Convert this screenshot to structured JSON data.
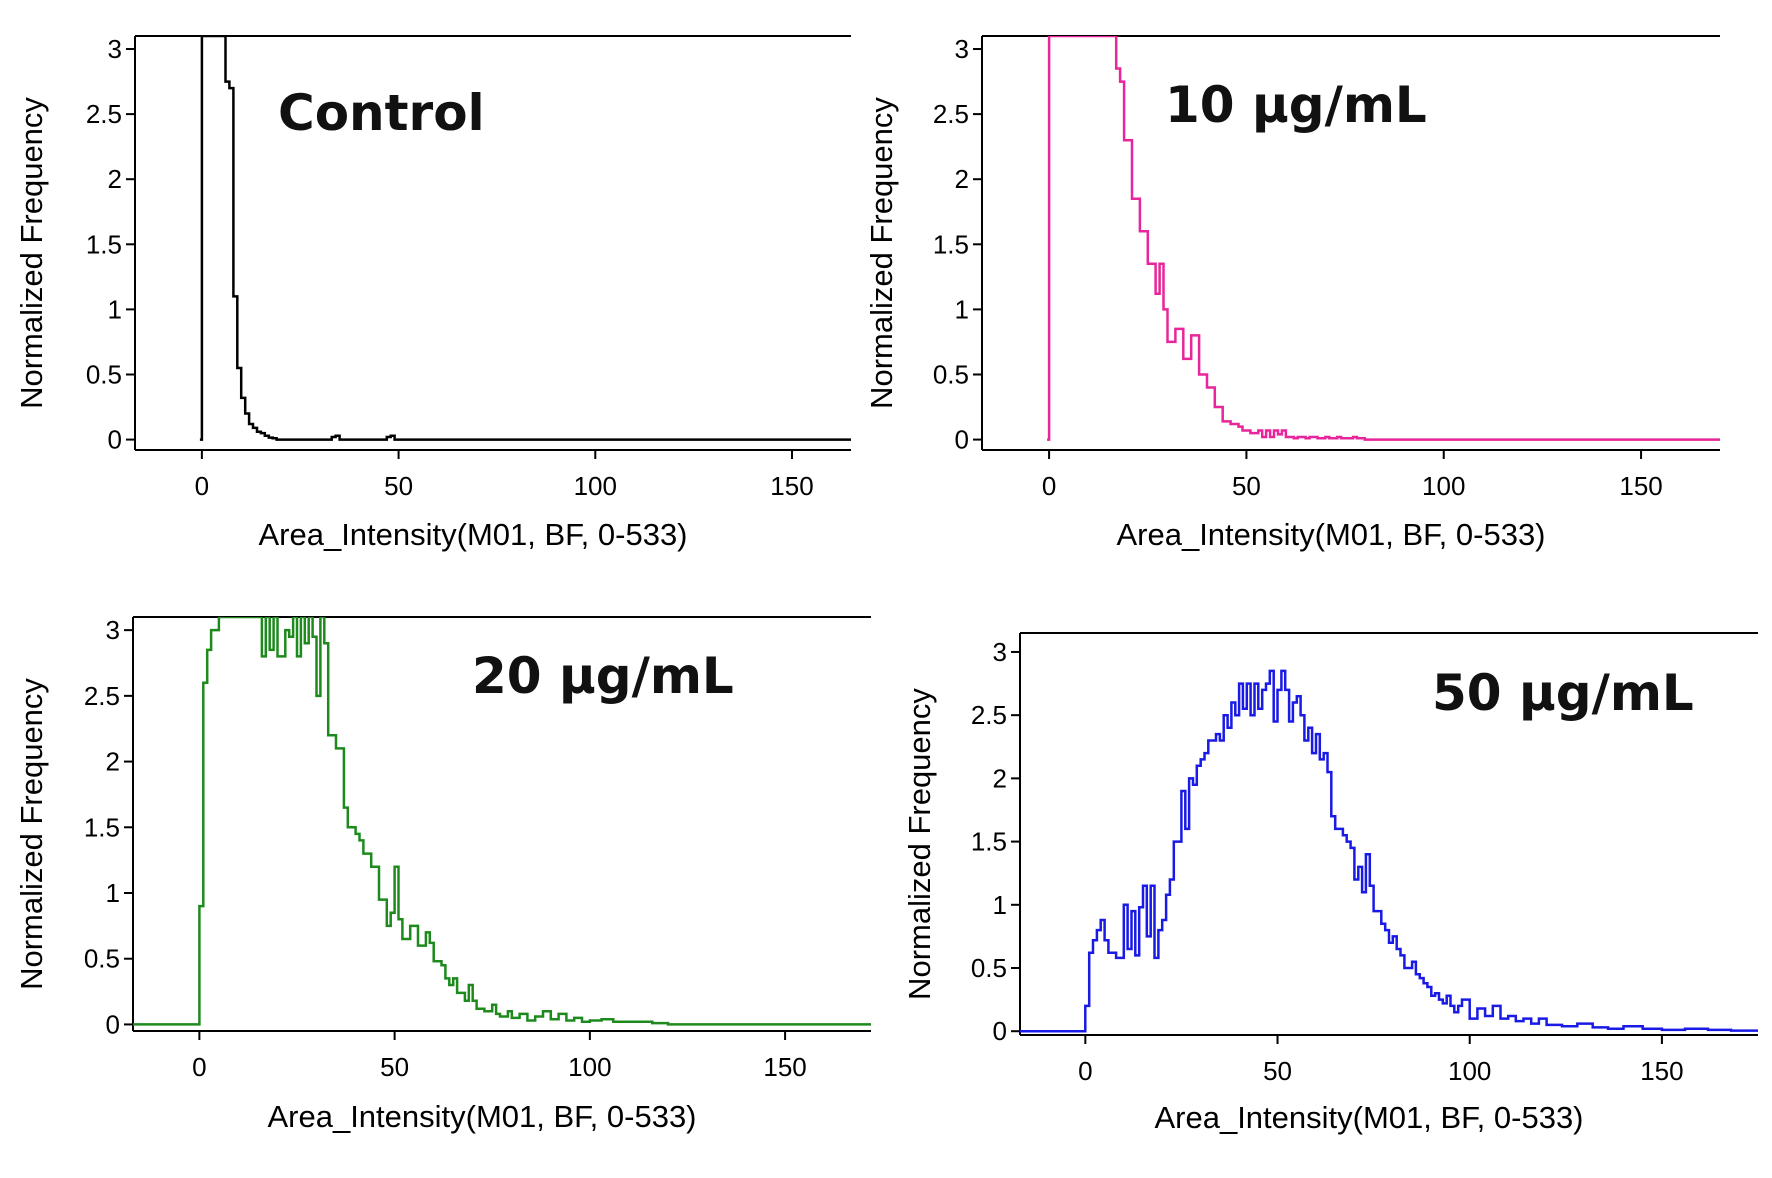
{
  "colors": {
    "control": "#000000",
    "dose_10": "#e8259a",
    "dose_20": "#1e8a1e",
    "dose_50": "#1a1ae6",
    "axis": "#000000"
  },
  "chart_data": [
    {
      "type": "histogram",
      "title": "Control",
      "xlabel": "Area_Intensity(M01, BF, 0-533)",
      "ylabel": "Normalized Frequency",
      "xlim": [
        -17,
        165
      ],
      "ylim": [
        -0.08,
        3.1
      ],
      "xticks": [
        0,
        50,
        100,
        150
      ],
      "xtick_labels": [
        "0",
        "50",
        "100",
        "150"
      ],
      "yticks": [
        0,
        0.5,
        1,
        1.5,
        2,
        2.5,
        3
      ],
      "ytick_labels": [
        "0",
        "0.5",
        "1",
        "1.5",
        "2",
        "2.5",
        "3"
      ],
      "color_key": "control",
      "x": [
        -0.5,
        0,
        5,
        6,
        7,
        8,
        9,
        10,
        11,
        12,
        13,
        14,
        15,
        16,
        17,
        18,
        19,
        20,
        33,
        34,
        35,
        47,
        48,
        49,
        50,
        165
      ],
      "y": [
        0,
        3.1,
        3.1,
        2.75,
        2.7,
        1.1,
        0.55,
        0.32,
        0.2,
        0.12,
        0.09,
        0.06,
        0.05,
        0.03,
        0.015,
        0.01,
        0,
        0,
        0.02,
        0.03,
        0,
        0.02,
        0.03,
        0,
        0,
        0
      ]
    },
    {
      "type": "histogram",
      "title": "10 µg/mL",
      "xlabel": "Area_Intensity(M01, BF, 0-533)",
      "ylabel": "Normalized Frequency",
      "xlim": [
        -17,
        170
      ],
      "ylim": [
        -0.08,
        3.1
      ],
      "xticks": [
        0,
        50,
        100,
        150
      ],
      "xtick_labels": [
        "0",
        "50",
        "100",
        "150"
      ],
      "yticks": [
        0,
        0.5,
        1,
        1.5,
        2,
        2.5,
        3
      ],
      "ytick_labels": [
        "0",
        "0.5",
        "1",
        "1.5",
        "2",
        "2.5",
        "3"
      ],
      "color_key": "dose_10",
      "x": [
        -0.5,
        0,
        16,
        17,
        18,
        19,
        20,
        21,
        22,
        23,
        24,
        25,
        26,
        27,
        28,
        29,
        30,
        31,
        32,
        33,
        34,
        35,
        36,
        37,
        38,
        39,
        40,
        41,
        42,
        43,
        44,
        45,
        46,
        47,
        48,
        49,
        50,
        51,
        52,
        53,
        54,
        55,
        56,
        57,
        58,
        59,
        60,
        61,
        62,
        63,
        64,
        65,
        66,
        67,
        68,
        69,
        70,
        71,
        72,
        73,
        74,
        75,
        76,
        77,
        78,
        79,
        80,
        170
      ],
      "y": [
        0,
        3.1,
        3.1,
        2.85,
        2.75,
        2.3,
        2.3,
        1.85,
        1.85,
        1.6,
        1.6,
        1.35,
        1.35,
        1.12,
        1.35,
        1.0,
        0.75,
        0.75,
        0.85,
        0.85,
        0.62,
        0.62,
        0.8,
        0.8,
        0.5,
        0.5,
        0.4,
        0.4,
        0.25,
        0.25,
        0.14,
        0.14,
        0.12,
        0.12,
        0.1,
        0.07,
        0.07,
        0.05,
        0.05,
        0.07,
        0.02,
        0.07,
        0.02,
        0.07,
        0.04,
        0.07,
        0.02,
        0.02,
        0.01,
        0.02,
        0.02,
        0.01,
        0.02,
        0.02,
        0.01,
        0.01,
        0.02,
        0.01,
        0.01,
        0.02,
        0.01,
        0.01,
        0.01,
        0.02,
        0.01,
        0.01,
        0,
        0
      ]
    },
    {
      "type": "histogram",
      "title": "20 µg/mL",
      "xlabel": "Area_Intensity(M01, BF, 0-533)",
      "ylabel": "Normalized Frequency",
      "xlim": [
        -17,
        172
      ],
      "ylim": [
        -0.05,
        3.1
      ],
      "xticks": [
        0,
        50,
        100,
        150
      ],
      "xtick_labels": [
        "0",
        "50",
        "100",
        "150"
      ],
      "yticks": [
        0,
        0.5,
        1,
        1.5,
        2,
        2.5,
        3
      ],
      "ytick_labels": [
        "0",
        "0.5",
        "1",
        "1.5",
        "2",
        "2.5",
        "3"
      ],
      "color_key": "dose_20",
      "x": [
        -17,
        0,
        1,
        2,
        3,
        4,
        5,
        16,
        17,
        18,
        19,
        20,
        21,
        22,
        23,
        24,
        25,
        26,
        27,
        28,
        29,
        30,
        31,
        32,
        33,
        34,
        35,
        36,
        37,
        38,
        39,
        40,
        41,
        42,
        43,
        44,
        45,
        46,
        47,
        48,
        49,
        50,
        51,
        52,
        53,
        54,
        55,
        56,
        57,
        58,
        59,
        60,
        61,
        62,
        63,
        64,
        65,
        66,
        67,
        68,
        69,
        70,
        71,
        72,
        73,
        74,
        75,
        76,
        77,
        78,
        79,
        80,
        82,
        84,
        86,
        88,
        90,
        92,
        94,
        96,
        98,
        100,
        103,
        106,
        109,
        112,
        116,
        120,
        172
      ],
      "y": [
        0,
        0.9,
        2.6,
        2.85,
        3.0,
        3.0,
        3.1,
        2.8,
        3.1,
        2.85,
        3.1,
        2.8,
        2.8,
        3.0,
        2.95,
        3.1,
        2.8,
        3.1,
        2.9,
        3.1,
        2.95,
        2.5,
        3.1,
        2.9,
        2.2,
        2.2,
        2.1,
        2.1,
        1.65,
        1.5,
        1.5,
        1.45,
        1.4,
        1.3,
        1.3,
        1.2,
        1.2,
        0.95,
        0.95,
        0.75,
        0.85,
        1.2,
        0.8,
        0.65,
        0.65,
        0.75,
        0.75,
        0.6,
        0.6,
        0.7,
        0.62,
        0.48,
        0.48,
        0.45,
        0.35,
        0.3,
        0.35,
        0.24,
        0.24,
        0.18,
        0.3,
        0.18,
        0.12,
        0.12,
        0.1,
        0.1,
        0.15,
        0.08,
        0.06,
        0.06,
        0.1,
        0.05,
        0.08,
        0.03,
        0.06,
        0.1,
        0.04,
        0.08,
        0.03,
        0.05,
        0.02,
        0.03,
        0.04,
        0.02,
        0.02,
        0.02,
        0.01,
        0,
        0
      ]
    },
    {
      "type": "histogram",
      "title": "50 µg/mL",
      "xlabel": "Area_Intensity(M01, BF, 0-533)",
      "ylabel": "Normalized Frequency",
      "xlim": [
        -17,
        175
      ],
      "ylim": [
        -0.03,
        3.15
      ],
      "xticks": [
        0,
        50,
        100,
        150
      ],
      "xtick_labels": [
        "0",
        "50",
        "100",
        "150"
      ],
      "yticks": [
        0,
        0.5,
        1,
        1.5,
        2,
        2.5,
        3
      ],
      "ytick_labels": [
        "0",
        "0.5",
        "1",
        "1.5",
        "2",
        "2.5",
        "3"
      ],
      "color_key": "dose_50",
      "x": [
        -17,
        0,
        1,
        2,
        3,
        4,
        5,
        6,
        8,
        10,
        11,
        12,
        13,
        14,
        15,
        16,
        17,
        18,
        19,
        20,
        21,
        22,
        23,
        24,
        25,
        26,
        27,
        28,
        29,
        30,
        31,
        32,
        33,
        34,
        35,
        36,
        37,
        38,
        39,
        40,
        41,
        42,
        43,
        44,
        45,
        46,
        47,
        48,
        49,
        50,
        51,
        52,
        53,
        54,
        55,
        56,
        57,
        58,
        59,
        60,
        61,
        62,
        63,
        64,
        65,
        66,
        67,
        68,
        69,
        70,
        71,
        72,
        73,
        74,
        75,
        76,
        77,
        78,
        79,
        80,
        81,
        82,
        83,
        84,
        85,
        86,
        87,
        88,
        89,
        90,
        91,
        92,
        93,
        94,
        95,
        96,
        97,
        98,
        100,
        102,
        104,
        106,
        108,
        110,
        112,
        114,
        116,
        118,
        120,
        124,
        128,
        132,
        136,
        140,
        145,
        150,
        156,
        162,
        168,
        175
      ],
      "y": [
        0,
        0.2,
        0.62,
        0.72,
        0.8,
        0.88,
        0.72,
        0.62,
        0.58,
        1.0,
        0.65,
        0.95,
        0.6,
        0.98,
        1.15,
        0.75,
        1.15,
        0.58,
        0.8,
        0.88,
        1.08,
        1.2,
        1.5,
        1.5,
        1.9,
        1.6,
        2.0,
        1.95,
        2.1,
        2.15,
        2.2,
        2.3,
        2.3,
        2.35,
        2.3,
        2.5,
        2.4,
        2.6,
        2.5,
        2.75,
        2.55,
        2.75,
        2.5,
        2.75,
        2.55,
        2.7,
        2.75,
        2.85,
        2.45,
        2.7,
        2.85,
        2.7,
        2.45,
        2.6,
        2.65,
        2.5,
        2.3,
        2.4,
        2.2,
        2.35,
        2.15,
        2.2,
        2.05,
        1.7,
        1.6,
        1.6,
        1.55,
        1.5,
        1.45,
        1.2,
        1.3,
        1.1,
        1.4,
        1.15,
        0.95,
        0.95,
        0.85,
        0.8,
        0.7,
        0.75,
        0.65,
        0.6,
        0.5,
        0.5,
        0.55,
        0.45,
        0.42,
        0.38,
        0.35,
        0.28,
        0.3,
        0.25,
        0.22,
        0.28,
        0.2,
        0.15,
        0.2,
        0.25,
        0.1,
        0.18,
        0.12,
        0.2,
        0.1,
        0.12,
        0.08,
        0.1,
        0.06,
        0.1,
        0.05,
        0.04,
        0.06,
        0.03,
        0.02,
        0.04,
        0.02,
        0.01,
        0.02,
        0.01,
        0.005,
        0
      ]
    }
  ]
}
